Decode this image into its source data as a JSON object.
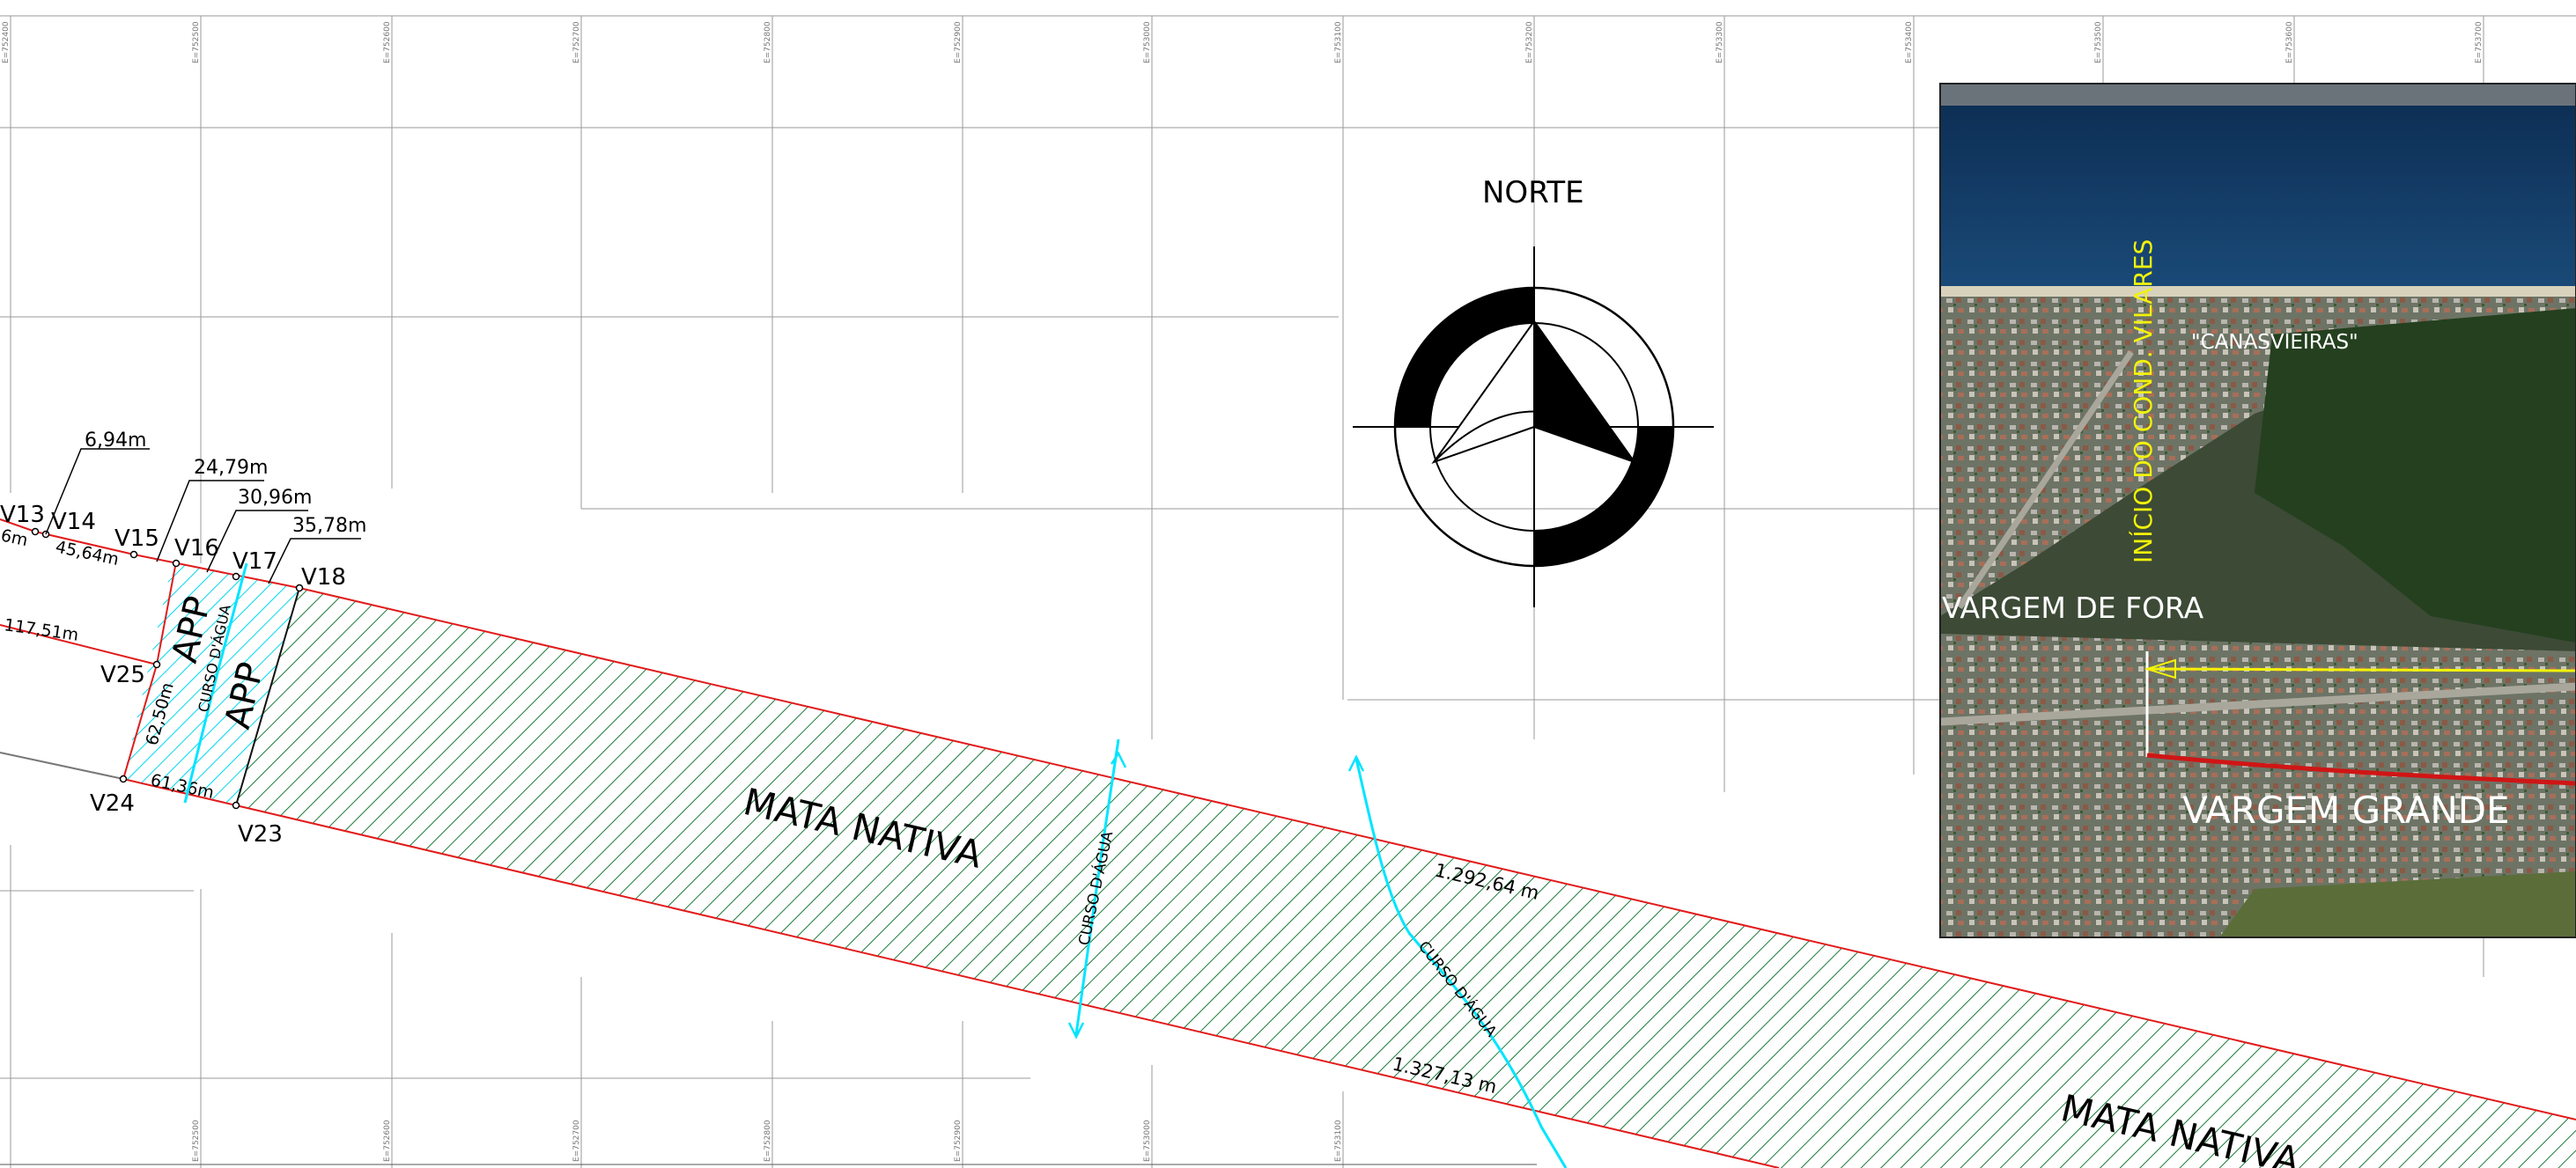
{
  "north_label": "NORTE",
  "grid_coordinates": [
    "E=752400",
    "E=752500",
    "E=752600",
    "E=752700",
    "E=752800",
    "E=752900",
    "E=753000",
    "E=753100",
    "E=753200",
    "E=753300",
    "E=753400",
    "E=753500",
    "E=753600",
    "E=753700"
  ],
  "vertices": {
    "v13": "V13",
    "v14": "V14",
    "v15": "V15",
    "v16": "V16",
    "v17": "V17",
    "v18": "V18",
    "v23": "V23",
    "v24": "V24",
    "v25": "V25"
  },
  "dimensions": {
    "d_6_94": "6,94m",
    "d_24_79": "24,79m",
    "d_30_96": "30,96m",
    "d_35_78": "35,78m",
    "d_45_64": "45,64m",
    "d_partial": "6m",
    "d_117_51": "117,51m",
    "d_62_50": "62,50m",
    "d_61_36": "61,36m",
    "d_top_edge": "1.292,64 m",
    "d_bottom_edge": "1.327,13 m"
  },
  "zones": {
    "app_1": "APP",
    "app_2": "APP",
    "mata_nativa_1": "MATA  NATIVA",
    "mata_nativa_2": "MATA  NATIVA"
  },
  "streams": {
    "curso_1": "CURSO D'ÁGUA",
    "curso_2": "CURSO D'ÁGUA",
    "curso_3": "CURSO D'ÁGUA"
  },
  "satellite": {
    "canasvieiras": "\"CANASVIEIRAS\"",
    "inicio": "INÍCIO DO COND. VILARES",
    "vargem_de_fora": "VARGEM DE FORA",
    "vargem_grande": "VARGEM GRANDE"
  },
  "colors": {
    "boundary": "#e21a1a",
    "hatch": "#1a7a3a",
    "stream": "#00e5ff",
    "grid": "#9a9a9a",
    "photo_yellow": "#f2f20a",
    "photo_route_red": "#d01515"
  }
}
